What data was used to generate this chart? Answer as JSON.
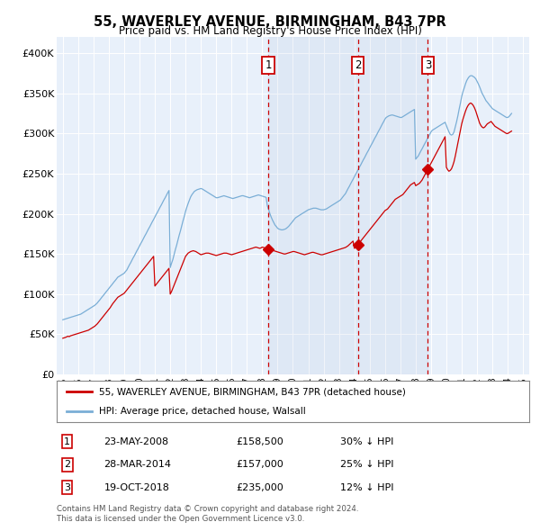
{
  "title": "55, WAVERLEY AVENUE, BIRMINGHAM, B43 7PR",
  "subtitle": "Price paid vs. HM Land Registry's House Price Index (HPI)",
  "legend_label_red": "55, WAVERLEY AVENUE, BIRMINGHAM, B43 7PR (detached house)",
  "legend_label_blue": "HPI: Average price, detached house, Walsall",
  "footer_line1": "Contains HM Land Registry data © Crown copyright and database right 2024.",
  "footer_line2": "This data is licensed under the Open Government Licence v3.0.",
  "sale_events": [
    {
      "num": 1,
      "date": "23-MAY-2008",
      "price": "£158,500",
      "note": "30% ↓ HPI",
      "x": 2008.39
    },
    {
      "num": 2,
      "date": "28-MAR-2014",
      "price": "£157,000",
      "note": "25% ↓ HPI",
      "x": 2014.24
    },
    {
      "num": 3,
      "date": "19-OCT-2018",
      "price": "£235,000",
      "note": "12% ↓ HPI",
      "x": 2018.8
    }
  ],
  "red_color": "#cc0000",
  "blue_color": "#7aaed6",
  "dashed_color": "#cc0000",
  "shade_color": "#d0e4f7",
  "plot_bg": "#e8f0fa",
  "ylim": [
    0,
    420000
  ],
  "yticks": [
    0,
    50000,
    100000,
    150000,
    200000,
    250000,
    300000,
    350000,
    400000
  ],
  "ytick_labels": [
    "£0",
    "£50K",
    "£100K",
    "£150K",
    "£200K",
    "£250K",
    "£300K",
    "£350K",
    "£400K"
  ],
  "hpi_years": [
    1995,
    1995.08,
    1995.17,
    1995.25,
    1995.33,
    1995.42,
    1995.5,
    1995.58,
    1995.67,
    1995.75,
    1995.83,
    1995.92,
    1996,
    1996.08,
    1996.17,
    1996.25,
    1996.33,
    1996.42,
    1996.5,
    1996.58,
    1996.67,
    1996.75,
    1996.83,
    1996.92,
    1997,
    1997.08,
    1997.17,
    1997.25,
    1997.33,
    1997.42,
    1997.5,
    1997.58,
    1997.67,
    1997.75,
    1997.83,
    1997.92,
    1998,
    1998.08,
    1998.17,
    1998.25,
    1998.33,
    1998.42,
    1998.5,
    1998.58,
    1998.67,
    1998.75,
    1998.83,
    1998.92,
    1999,
    1999.08,
    1999.17,
    1999.25,
    1999.33,
    1999.42,
    1999.5,
    1999.58,
    1999.67,
    1999.75,
    1999.83,
    1999.92,
    2000,
    2000.08,
    2000.17,
    2000.25,
    2000.33,
    2000.42,
    2000.5,
    2000.58,
    2000.67,
    2000.75,
    2000.83,
    2000.92,
    2001,
    2001.08,
    2001.17,
    2001.25,
    2001.33,
    2001.42,
    2001.5,
    2001.58,
    2001.67,
    2001.75,
    2001.83,
    2001.92,
    2002,
    2002.08,
    2002.17,
    2002.25,
    2002.33,
    2002.42,
    2002.5,
    2002.58,
    2002.67,
    2002.75,
    2002.83,
    2002.92,
    2003,
    2003.08,
    2003.17,
    2003.25,
    2003.33,
    2003.42,
    2003.5,
    2003.58,
    2003.67,
    2003.75,
    2003.83,
    2003.92,
    2004,
    2004.08,
    2004.17,
    2004.25,
    2004.33,
    2004.42,
    2004.5,
    2004.58,
    2004.67,
    2004.75,
    2004.83,
    2004.92,
    2005,
    2005.08,
    2005.17,
    2005.25,
    2005.33,
    2005.42,
    2005.5,
    2005.58,
    2005.67,
    2005.75,
    2005.83,
    2005.92,
    2006,
    2006.08,
    2006.17,
    2006.25,
    2006.33,
    2006.42,
    2006.5,
    2006.58,
    2006.67,
    2006.75,
    2006.83,
    2006.92,
    2007,
    2007.08,
    2007.17,
    2007.25,
    2007.33,
    2007.42,
    2007.5,
    2007.58,
    2007.67,
    2007.75,
    2007.83,
    2007.92,
    2008,
    2008.08,
    2008.17,
    2008.25,
    2008.33,
    2008.42,
    2008.5,
    2008.58,
    2008.67,
    2008.75,
    2008.83,
    2008.92,
    2009,
    2009.08,
    2009.17,
    2009.25,
    2009.33,
    2009.42,
    2009.5,
    2009.58,
    2009.67,
    2009.75,
    2009.83,
    2009.92,
    2010,
    2010.08,
    2010.17,
    2010.25,
    2010.33,
    2010.42,
    2010.5,
    2010.58,
    2010.67,
    2010.75,
    2010.83,
    2010.92,
    2011,
    2011.08,
    2011.17,
    2011.25,
    2011.33,
    2011.42,
    2011.5,
    2011.58,
    2011.67,
    2011.75,
    2011.83,
    2011.92,
    2012,
    2012.08,
    2012.17,
    2012.25,
    2012.33,
    2012.42,
    2012.5,
    2012.58,
    2012.67,
    2012.75,
    2012.83,
    2012.92,
    2013,
    2013.08,
    2013.17,
    2013.25,
    2013.33,
    2013.42,
    2013.5,
    2013.58,
    2013.67,
    2013.75,
    2013.83,
    2013.92,
    2014,
    2014.08,
    2014.17,
    2014.25,
    2014.33,
    2014.42,
    2014.5,
    2014.58,
    2014.67,
    2014.75,
    2014.83,
    2014.92,
    2015,
    2015.08,
    2015.17,
    2015.25,
    2015.33,
    2015.42,
    2015.5,
    2015.58,
    2015.67,
    2015.75,
    2015.83,
    2015.92,
    2016,
    2016.08,
    2016.17,
    2016.25,
    2016.33,
    2016.42,
    2016.5,
    2016.58,
    2016.67,
    2016.75,
    2016.83,
    2016.92,
    2017,
    2017.08,
    2017.17,
    2017.25,
    2017.33,
    2017.42,
    2017.5,
    2017.58,
    2017.67,
    2017.75,
    2017.83,
    2017.92,
    2018,
    2018.08,
    2018.17,
    2018.25,
    2018.33,
    2018.42,
    2018.5,
    2018.58,
    2018.67,
    2018.75,
    2018.83,
    2018.92,
    2019,
    2019.08,
    2019.17,
    2019.25,
    2019.33,
    2019.42,
    2019.5,
    2019.58,
    2019.67,
    2019.75,
    2019.83,
    2019.92,
    2020,
    2020.08,
    2020.17,
    2020.25,
    2020.33,
    2020.42,
    2020.5,
    2020.58,
    2020.67,
    2020.75,
    2020.83,
    2020.92,
    2021,
    2021.08,
    2021.17,
    2021.25,
    2021.33,
    2021.42,
    2021.5,
    2021.58,
    2021.67,
    2021.75,
    2021.83,
    2021.92,
    2022,
    2022.08,
    2022.17,
    2022.25,
    2022.33,
    2022.42,
    2022.5,
    2022.58,
    2022.67,
    2022.75,
    2022.83,
    2022.92,
    2023,
    2023.08,
    2023.17,
    2023.25,
    2023.33,
    2023.42,
    2023.5,
    2023.58,
    2023.67,
    2023.75,
    2023.83,
    2023.92,
    2024,
    2024.08,
    2024.17,
    2024.25
  ],
  "hpi_prices": [
    68000,
    68500,
    69000,
    69500,
    70000,
    70500,
    71000,
    71500,
    72000,
    72500,
    73000,
    73500,
    74000,
    74500,
    75000,
    76000,
    77000,
    78000,
    79000,
    80000,
    81000,
    82000,
    83000,
    84000,
    85000,
    86000,
    87500,
    89000,
    91000,
    93000,
    95000,
    97000,
    99000,
    101000,
    103000,
    105000,
    107000,
    109000,
    111000,
    113000,
    115000,
    117000,
    119000,
    121000,
    122000,
    123000,
    124000,
    125000,
    126000,
    128000,
    130000,
    133000,
    136000,
    139000,
    142000,
    145000,
    148000,
    151000,
    154000,
    157000,
    160000,
    163000,
    166000,
    169000,
    172000,
    175000,
    178000,
    181000,
    184000,
    187000,
    190000,
    193000,
    196000,
    199000,
    202000,
    205000,
    208000,
    211000,
    214000,
    217000,
    220000,
    223000,
    226000,
    229000,
    133000,
    138000,
    143000,
    149000,
    155000,
    161000,
    167000,
    173000,
    179000,
    185000,
    191000,
    197000,
    203000,
    208000,
    213000,
    217000,
    221000,
    224000,
    226000,
    228000,
    229000,
    230000,
    230500,
    231000,
    231500,
    231000,
    230000,
    229000,
    228000,
    227000,
    226000,
    225000,
    224000,
    223000,
    222000,
    221000,
    220000,
    220000,
    220500,
    221000,
    221500,
    222000,
    222500,
    222000,
    221500,
    221000,
    220500,
    220000,
    219500,
    219000,
    219500,
    220000,
    220500,
    221000,
    221500,
    222000,
    222500,
    222500,
    222000,
    221500,
    221000,
    220500,
    220000,
    220500,
    221000,
    221500,
    222000,
    222500,
    223000,
    223500,
    223000,
    222500,
    222000,
    221500,
    221000,
    220500,
    210000,
    205000,
    200000,
    196000,
    192000,
    189000,
    186000,
    184000,
    182000,
    181000,
    180500,
    180000,
    180000,
    180500,
    181000,
    182000,
    183500,
    185000,
    187000,
    189000,
    191000,
    193000,
    195000,
    196000,
    197000,
    198000,
    199000,
    200000,
    201000,
    202000,
    203000,
    204000,
    205000,
    205500,
    206000,
    206500,
    207000,
    207000,
    207000,
    206500,
    206000,
    205500,
    205000,
    205000,
    205000,
    205500,
    206000,
    207000,
    208000,
    209000,
    210000,
    211000,
    212000,
    213000,
    214000,
    215000,
    216000,
    217000,
    219000,
    221000,
    223000,
    225000,
    228000,
    231000,
    234000,
    237000,
    240000,
    243000,
    246000,
    249000,
    252000,
    255000,
    258000,
    261000,
    264000,
    267000,
    270000,
    273000,
    276000,
    279000,
    282000,
    285000,
    288000,
    291000,
    294000,
    297000,
    300000,
    303000,
    306000,
    309000,
    312000,
    315000,
    318000,
    320000,
    321000,
    322000,
    322500,
    323000,
    323000,
    322500,
    322000,
    321500,
    321000,
    320500,
    320000,
    320000,
    321000,
    322000,
    323000,
    324000,
    325000,
    326000,
    327000,
    328000,
    329000,
    330000,
    268000,
    270000,
    272000,
    275000,
    278000,
    281000,
    284000,
    287000,
    290000,
    293000,
    296000,
    299000,
    302000,
    304000,
    305000,
    306000,
    307000,
    308000,
    309000,
    310000,
    311000,
    312000,
    313000,
    314000,
    310000,
    306000,
    302000,
    299000,
    298000,
    299000,
    302000,
    308000,
    315000,
    322000,
    330000,
    338000,
    346000,
    352000,
    357000,
    362000,
    366000,
    369000,
    371000,
    372000,
    372000,
    371000,
    370000,
    368000,
    365000,
    362000,
    358000,
    354000,
    350000,
    347000,
    344000,
    341000,
    339000,
    337000,
    335000,
    333000,
    331000,
    330000,
    329000,
    328000,
    327000,
    326000,
    325000,
    324000,
    323000,
    322000,
    321000,
    320000,
    320000,
    321000,
    323000,
    325000
  ],
  "red_years": [
    1995,
    1995.083,
    1995.167,
    1995.25,
    1995.333,
    1995.417,
    1995.5,
    1995.583,
    1995.667,
    1995.75,
    1995.833,
    1995.917,
    1996,
    1996.083,
    1996.167,
    1996.25,
    1996.333,
    1996.417,
    1996.5,
    1996.583,
    1996.667,
    1996.75,
    1996.833,
    1996.917,
    1997,
    1997.083,
    1997.167,
    1997.25,
    1997.333,
    1997.417,
    1997.5,
    1997.583,
    1997.667,
    1997.75,
    1997.833,
    1997.917,
    1998,
    1998.083,
    1998.167,
    1998.25,
    1998.333,
    1998.417,
    1998.5,
    1998.583,
    1998.667,
    1998.75,
    1998.833,
    1998.917,
    1999,
    1999.083,
    1999.167,
    1999.25,
    1999.333,
    1999.417,
    1999.5,
    1999.583,
    1999.667,
    1999.75,
    1999.833,
    1999.917,
    2000,
    2000.083,
    2000.167,
    2000.25,
    2000.333,
    2000.417,
    2000.5,
    2000.583,
    2000.667,
    2000.75,
    2000.833,
    2000.917,
    2001,
    2001.083,
    2001.167,
    2001.25,
    2001.333,
    2001.417,
    2001.5,
    2001.583,
    2001.667,
    2001.75,
    2001.833,
    2001.917,
    2002,
    2002.083,
    2002.167,
    2002.25,
    2002.333,
    2002.417,
    2002.5,
    2002.583,
    2002.667,
    2002.75,
    2002.833,
    2002.917,
    2003,
    2003.083,
    2003.167,
    2003.25,
    2003.333,
    2003.417,
    2003.5,
    2003.583,
    2003.667,
    2003.75,
    2003.833,
    2003.917,
    2004,
    2004.083,
    2004.167,
    2004.25,
    2004.333,
    2004.417,
    2004.5,
    2004.583,
    2004.667,
    2004.75,
    2004.833,
    2004.917,
    2005,
    2005.083,
    2005.167,
    2005.25,
    2005.333,
    2005.417,
    2005.5,
    2005.583,
    2005.667,
    2005.75,
    2005.833,
    2005.917,
    2006,
    2006.083,
    2006.167,
    2006.25,
    2006.333,
    2006.417,
    2006.5,
    2006.583,
    2006.667,
    2006.75,
    2006.833,
    2006.917,
    2007,
    2007.083,
    2007.167,
    2007.25,
    2007.333,
    2007.417,
    2007.5,
    2007.583,
    2007.667,
    2007.75,
    2007.833,
    2007.917,
    2008,
    2008.083,
    2008.167,
    2008.25,
    2008.333,
    2008.417,
    2008.5,
    2008.583,
    2008.667,
    2008.75,
    2008.833,
    2008.917,
    2009,
    2009.083,
    2009.167,
    2009.25,
    2009.333,
    2009.417,
    2009.5,
    2009.583,
    2009.667,
    2009.75,
    2009.833,
    2009.917,
    2010,
    2010.083,
    2010.167,
    2010.25,
    2010.333,
    2010.417,
    2010.5,
    2010.583,
    2010.667,
    2010.75,
    2010.833,
    2010.917,
    2011,
    2011.083,
    2011.167,
    2011.25,
    2011.333,
    2011.417,
    2011.5,
    2011.583,
    2011.667,
    2011.75,
    2011.833,
    2011.917,
    2012,
    2012.083,
    2012.167,
    2012.25,
    2012.333,
    2012.417,
    2012.5,
    2012.583,
    2012.667,
    2012.75,
    2012.833,
    2012.917,
    2013,
    2013.083,
    2013.167,
    2013.25,
    2013.333,
    2013.417,
    2013.5,
    2013.583,
    2013.667,
    2013.75,
    2013.833,
    2013.917,
    2014,
    2014.083,
    2014.167,
    2014.25,
    2014.333,
    2014.417,
    2014.5,
    2014.583,
    2014.667,
    2014.75,
    2014.833,
    2014.917,
    2015,
    2015.083,
    2015.167,
    2015.25,
    2015.333,
    2015.417,
    2015.5,
    2015.583,
    2015.667,
    2015.75,
    2015.833,
    2015.917,
    2016,
    2016.083,
    2016.167,
    2016.25,
    2016.333,
    2016.417,
    2016.5,
    2016.583,
    2016.667,
    2016.75,
    2016.833,
    2016.917,
    2017,
    2017.083,
    2017.167,
    2017.25,
    2017.333,
    2017.417,
    2017.5,
    2017.583,
    2017.667,
    2017.75,
    2017.833,
    2017.917,
    2018,
    2018.083,
    2018.167,
    2018.25,
    2018.333,
    2018.417,
    2018.5,
    2018.583,
    2018.667,
    2018.75,
    2018.833,
    2018.917,
    2019,
    2019.083,
    2019.167,
    2019.25,
    2019.333,
    2019.417,
    2019.5,
    2019.583,
    2019.667,
    2019.75,
    2019.833,
    2019.917,
    2020,
    2020.083,
    2020.167,
    2020.25,
    2020.333,
    2020.417,
    2020.5,
    2020.583,
    2020.667,
    2020.75,
    2020.833,
    2020.917,
    2021,
    2021.083,
    2021.167,
    2021.25,
    2021.333,
    2021.417,
    2021.5,
    2021.583,
    2021.667,
    2021.75,
    2021.833,
    2021.917,
    2022,
    2022.083,
    2022.167,
    2022.25,
    2022.333,
    2022.417,
    2022.5,
    2022.583,
    2022.667,
    2022.75,
    2022.833,
    2022.917,
    2023,
    2023.083,
    2023.167,
    2023.25,
    2023.333,
    2023.417,
    2023.5,
    2023.583,
    2023.667,
    2023.75,
    2023.833,
    2023.917,
    2024,
    2024.083,
    2024.167,
    2024.25
  ],
  "red_prices": [
    45000,
    45500,
    46000,
    46800,
    47500,
    47000,
    48000,
    48500,
    49000,
    49500,
    50000,
    50500,
    51000,
    51500,
    52000,
    52500,
    53000,
    53500,
    54000,
    54500,
    55000,
    56000,
    57000,
    58000,
    59000,
    60000,
    61500,
    63000,
    65000,
    67000,
    69000,
    71000,
    73000,
    75000,
    77000,
    79000,
    81000,
    83000,
    85500,
    88000,
    90000,
    92000,
    94000,
    96000,
    97000,
    98000,
    99000,
    100000,
    101000,
    103000,
    105000,
    107000,
    109000,
    111000,
    113000,
    115000,
    117000,
    119000,
    121000,
    123000,
    125000,
    127000,
    129000,
    131000,
    133000,
    135000,
    137000,
    139000,
    141000,
    143000,
    145000,
    147000,
    110000,
    112000,
    114000,
    116000,
    118000,
    120000,
    122000,
    124000,
    126000,
    128000,
    130000,
    132000,
    100000,
    103000,
    107000,
    111000,
    115000,
    119000,
    123000,
    127000,
    131000,
    135000,
    139000,
    143000,
    147000,
    149000,
    151000,
    152000,
    153000,
    153500,
    154000,
    153500,
    153000,
    152000,
    151000,
    150000,
    149000,
    149500,
    150000,
    150500,
    151000,
    151000,
    151000,
    150500,
    150000,
    149500,
    149000,
    148500,
    148000,
    148500,
    149000,
    149500,
    150000,
    150500,
    151000,
    151000,
    151000,
    150500,
    150000,
    149500,
    149000,
    149500,
    150000,
    150500,
    151000,
    151500,
    152000,
    152500,
    153000,
    153500,
    154000,
    154500,
    155000,
    155500,
    156000,
    156500,
    157000,
    157500,
    158000,
    158500,
    158000,
    157500,
    157000,
    157500,
    158500,
    158000,
    157500,
    157000,
    156500,
    156000,
    155500,
    155000,
    154500,
    154000,
    153500,
    153000,
    152500,
    152000,
    151500,
    151000,
    150500,
    150000,
    150000,
    150500,
    151000,
    151500,
    152000,
    152500,
    153000,
    153000,
    152500,
    152000,
    151500,
    151000,
    150500,
    150000,
    149500,
    149000,
    149500,
    150000,
    150500,
    151000,
    151500,
    152000,
    152000,
    151500,
    151000,
    150500,
    150000,
    149500,
    149000,
    149000,
    149500,
    150000,
    150500,
    151000,
    151500,
    152000,
    152500,
    153000,
    153500,
    154000,
    154500,
    155000,
    155500,
    156000,
    156500,
    157000,
    157500,
    158000,
    159000,
    160000,
    161500,
    163000,
    164500,
    166000,
    157000,
    158000,
    160000,
    162000,
    164000,
    166000,
    168000,
    170000,
    172000,
    174000,
    176000,
    178000,
    180000,
    182000,
    184000,
    186000,
    188000,
    190000,
    192000,
    194000,
    196000,
    198000,
    200000,
    202000,
    204000,
    205000,
    206000,
    208000,
    210000,
    212000,
    214000,
    216000,
    218000,
    219000,
    220000,
    221000,
    222000,
    223000,
    224000,
    226000,
    228000,
    230000,
    232000,
    234000,
    236000,
    237000,
    238000,
    239000,
    235000,
    236000,
    237000,
    238000,
    240000,
    242000,
    245000,
    248000,
    251000,
    254000,
    257000,
    260000,
    263000,
    266000,
    269000,
    272000,
    275000,
    278000,
    281000,
    284000,
    287000,
    290000,
    293000,
    296000,
    258000,
    255000,
    253000,
    254000,
    256000,
    260000,
    265000,
    272000,
    280000,
    288000,
    296000,
    304000,
    312000,
    318000,
    323000,
    328000,
    332000,
    335000,
    337000,
    338000,
    337000,
    335000,
    332000,
    328000,
    323000,
    318000,
    313000,
    310000,
    308000,
    307000,
    308000,
    310000,
    312000,
    313000,
    314000,
    315000,
    313000,
    311000,
    309000,
    308000,
    307000,
    306000,
    305000,
    304000,
    303000,
    302000,
    301000,
    300000,
    300000,
    301000,
    302000,
    303000
  ]
}
